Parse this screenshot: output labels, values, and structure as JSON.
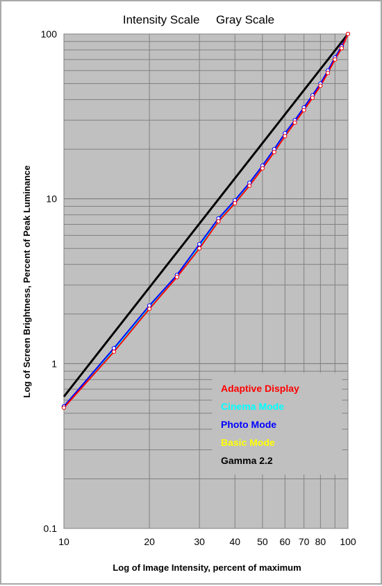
{
  "chart_data": {
    "type": "line",
    "title": "Intensity Scale     Gray Scale",
    "xlabel": "Log of Image Intensity, percent of maximum",
    "ylabel": "Log of Screen Brightness, Percent of Peak Luminance",
    "xscale": "log",
    "yscale": "log",
    "xlim": [
      10,
      100
    ],
    "ylim": [
      0.1,
      100
    ],
    "xticks": [
      10,
      20,
      30,
      40,
      50,
      60,
      70,
      80,
      100
    ],
    "xtick_labels": [
      "10",
      "20",
      "30",
      "40",
      "50",
      "60",
      "70",
      "80",
      "100"
    ],
    "yticks": [
      0.1,
      1,
      10,
      100
    ],
    "ytick_labels": [
      "0.1",
      "1",
      "10",
      "100"
    ],
    "grid": true,
    "plot_background": "#c0c0c0",
    "legend_position": "lower-right",
    "x": [
      10,
      15,
      20,
      25,
      30,
      35,
      40,
      45,
      50,
      55,
      60,
      65,
      70,
      75,
      80,
      85,
      90,
      95,
      100
    ],
    "series": [
      {
        "name": "Adaptive Display",
        "color": "#ff0000",
        "values": [
          0.54,
          1.18,
          2.15,
          3.35,
          5.0,
          7.3,
          9.4,
          12.0,
          15.3,
          19.2,
          24.0,
          29.0,
          34.5,
          41.0,
          48.5,
          58.0,
          70.0,
          82.0,
          100
        ]
      },
      {
        "name": "Cinema Mode",
        "color": "#00ffff",
        "values": [
          0.55,
          1.21,
          2.2,
          3.4,
          5.15,
          7.5,
          9.6,
          12.3,
          15.6,
          19.6,
          24.5,
          29.5,
          35.2,
          42.0,
          49.5,
          59.0,
          71.0,
          83.0,
          100
        ]
      },
      {
        "name": "Photo Mode",
        "color": "#0000ff",
        "values": [
          0.55,
          1.24,
          2.25,
          3.45,
          5.3,
          7.6,
          9.8,
          12.5,
          15.9,
          20.0,
          25.0,
          30.0,
          35.8,
          42.5,
          50.0,
          60.0,
          72.0,
          84.0,
          100
        ]
      },
      {
        "name": "Basic Mode",
        "color": "#ffff00",
        "values": [
          0.55,
          1.2,
          2.2,
          3.4,
          5.1,
          7.4,
          9.5,
          12.2,
          15.5,
          19.5,
          24.3,
          29.3,
          35.0,
          41.5,
          49.0,
          58.5,
          70.5,
          82.5,
          100
        ]
      },
      {
        "name": "Gamma 2.2",
        "color": "#000000",
        "x": [
          10,
          100
        ],
        "values": [
          0.631,
          100
        ]
      }
    ]
  }
}
